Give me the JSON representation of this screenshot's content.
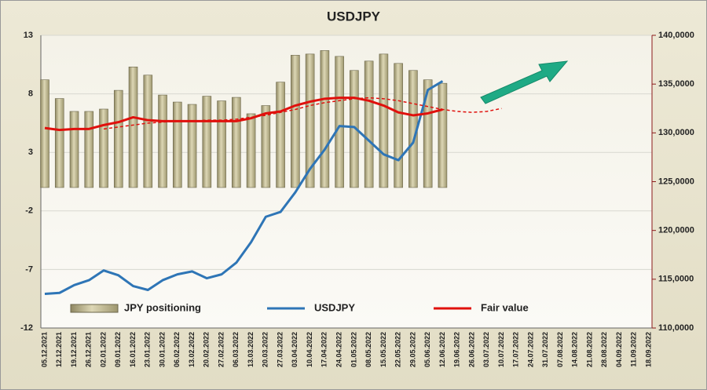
{
  "chart_data": {
    "type": "combo",
    "title": "USDJPY",
    "categories": [
      "05.12.2021",
      "12.12.2021",
      "19.12.2021",
      "26.12.2021",
      "02.01.2022",
      "09.01.2022",
      "16.01.2022",
      "23.01.2022",
      "30.01.2022",
      "06.02.2022",
      "13.02.2022",
      "20.02.2022",
      "27.02.2022",
      "06.03.2022",
      "13.03.2022",
      "20.03.2022",
      "27.03.2022",
      "03.04.2022",
      "10.04.2022",
      "17.04.2022",
      "24.04.2022",
      "01.05.2022",
      "08.05.2022",
      "15.05.2022",
      "22.05.2022",
      "29.05.2022",
      "05.06.2022",
      "12.06.2022",
      "19.06.2022",
      "26.06.2022",
      "03.07.2022",
      "10.07.2022",
      "17.07.2022",
      "24.07.2022",
      "31.07.2022",
      "07.08.2022",
      "14.08.2022",
      "21.08.2022",
      "28.08.2022",
      "04.09.2022",
      "11.09.2022",
      "18.09.2022"
    ],
    "series": [
      {
        "name": "JPY positioning",
        "type": "bar",
        "color": "#c9c29c",
        "values": [
          9.2,
          7.6,
          6.5,
          6.5,
          6.7,
          8.3,
          10.3,
          9.6,
          7.9,
          7.3,
          7.1,
          7.8,
          7.4,
          7.7,
          6.3,
          7.0,
          9.0,
          11.3,
          11.4,
          11.7,
          11.2,
          10.0,
          10.8,
          11.4,
          10.6,
          10.0,
          9.2,
          8.9,
          null,
          null,
          null,
          null,
          null,
          null,
          null,
          null,
          null,
          null,
          null,
          null,
          null,
          null
        ]
      },
      {
        "name": "USDJPY",
        "type": "line",
        "axis": "y2",
        "color": "#2e75b6",
        "dashed": false,
        "values": [
          113.5,
          113.6,
          114.4,
          114.9,
          115.9,
          115.4,
          114.3,
          113.9,
          114.9,
          115.5,
          115.8,
          115.1,
          115.5,
          116.7,
          118.8,
          121.4,
          121.9,
          123.9,
          126.3,
          128.3,
          130.7,
          130.6,
          129.2,
          127.8,
          127.2,
          129.0,
          134.4,
          135.3,
          null,
          null,
          null,
          null,
          null,
          null,
          null,
          null,
          null,
          null,
          null,
          null,
          null,
          null
        ]
      },
      {
        "name": "Fair value",
        "type": "line",
        "axis": "y2",
        "color": "#e0100c",
        "dashed": false,
        "values": [
          130.5,
          130.3,
          130.4,
          130.4,
          130.8,
          131.1,
          131.6,
          131.3,
          131.2,
          131.2,
          131.2,
          131.2,
          131.2,
          131.2,
          131.5,
          132.0,
          132.2,
          132.8,
          133.2,
          133.5,
          133.6,
          133.6,
          133.3,
          132.8,
          132.1,
          131.8,
          132.0,
          132.4,
          null,
          null,
          null,
          null,
          null,
          null,
          null,
          null,
          null,
          null,
          null,
          null,
          null,
          null
        ]
      },
      {
        "type": "line",
        "axis": "y2",
        "color": "#e0100c",
        "dashed": true,
        "values": [
          null,
          null,
          null,
          null,
          130.4,
          130.6,
          130.8,
          131.0,
          131.1,
          131.2,
          131.2,
          131.3,
          131.3,
          131.4,
          131.6,
          131.8,
          132.1,
          132.4,
          132.8,
          133.1,
          133.3,
          133.5,
          133.6,
          133.5,
          133.3,
          133.0,
          132.7,
          132.4,
          132.2,
          132.1,
          132.2,
          132.5,
          null,
          null,
          null,
          null,
          null,
          null,
          null,
          null,
          null,
          null
        ]
      }
    ],
    "ylim": [
      -12,
      13
    ],
    "yticks": [
      13,
      8,
      3,
      -2,
      -7,
      -12
    ],
    "y2lim": [
      110,
      140
    ],
    "y2ticks": [
      {
        "value": 140,
        "label": "140,0000"
      },
      {
        "value": 135,
        "label": "135,0000"
      },
      {
        "value": 130,
        "label": "130,0000"
      },
      {
        "value": 125,
        "label": "125,0000"
      },
      {
        "value": 120,
        "label": "120,0000"
      },
      {
        "value": 115,
        "label": "115,0000"
      },
      {
        "value": 110,
        "label": "110,0000"
      }
    ],
    "grid": true,
    "legend": "bottom"
  }
}
